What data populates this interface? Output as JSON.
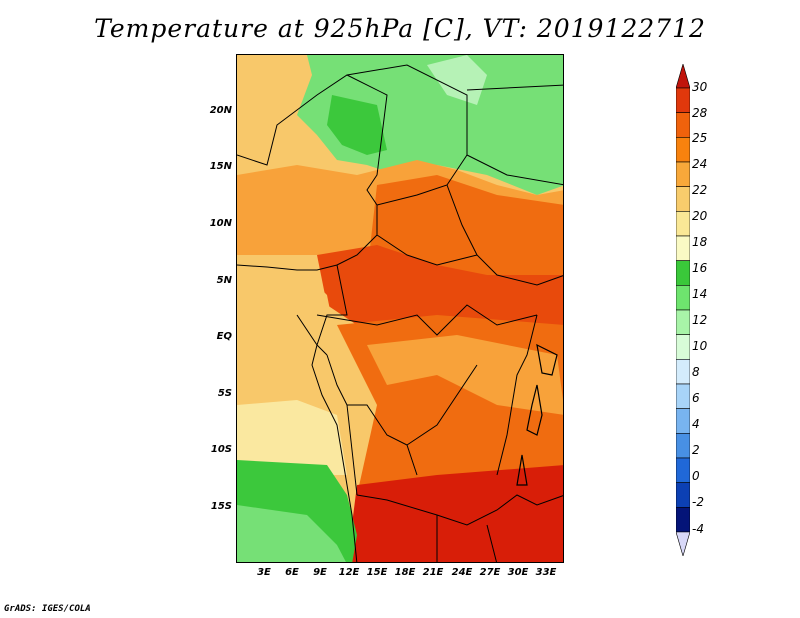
{
  "title": "Temperature at 925hPa [C], VT: 2019122712",
  "credit": "GrADS: IGES/COLA",
  "y_ticks": [
    "20N",
    "15N",
    "10N",
    "5N",
    "EQ",
    "5S",
    "10S",
    "15S"
  ],
  "x_ticks": [
    "3E",
    "6E",
    "9E",
    "12E",
    "15E",
    "18E",
    "21E",
    "24E",
    "27E",
    "30E",
    "33E"
  ],
  "colorbar": {
    "labels": [
      "30",
      "28",
      "25",
      "24",
      "22",
      "20",
      "18",
      "16",
      "14",
      "12",
      "10",
      "8",
      "6",
      "4",
      "2",
      "0",
      "-2",
      "-4"
    ],
    "colors": [
      "#c0140c",
      "#e0380c",
      "#f0620c",
      "#f8820e",
      "#f8a83a",
      "#f8cc6c",
      "#fae896",
      "#fafac4",
      "#3ac83a",
      "#6ee46e",
      "#a8f4a8",
      "#d8fcd8",
      "#d4ecfc",
      "#a8d4f8",
      "#78b4f0",
      "#4890e4",
      "#2068d8",
      "#0c40b4",
      "#041478",
      "#d8d8f8"
    ]
  },
  "map_colors": {
    "deep_red": "#d81e08",
    "red": "#e84a0c",
    "orange": "#f06c10",
    "light_orange": "#f8a23a",
    "tan": "#f8c86a",
    "pale": "#fae8a0",
    "green": "#3cc83c",
    "light_green": "#76e076",
    "pale_green": "#b6f2b6"
  }
}
